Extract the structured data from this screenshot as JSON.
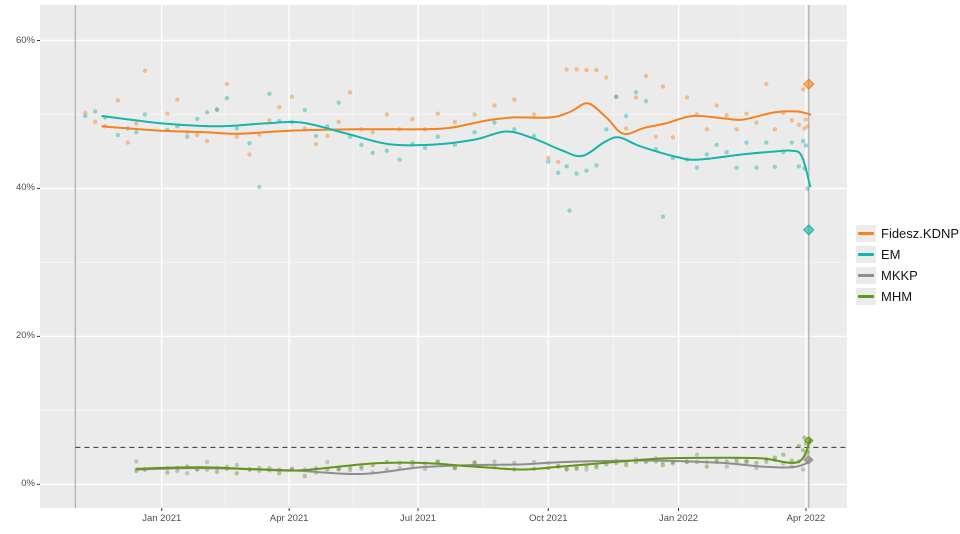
{
  "page": {
    "background": "#ffffff",
    "panel_bg": "#ebebeb",
    "grid_color": "#ffffff"
  },
  "legend": {
    "items": [
      {
        "label": "Fidesz.KDNP",
        "color": "#f5821f"
      },
      {
        "label": "EM",
        "color": "#16b5a8"
      },
      {
        "label": "MKKP",
        "color": "#8e8e8e"
      },
      {
        "label": "MHM",
        "color": "#61961b"
      }
    ]
  },
  "chart_data": {
    "type": "scatter",
    "title": "",
    "xlabel": "",
    "ylabel": "",
    "grid": true,
    "legend_position": "right",
    "x_axis": {
      "domain": [
        "2020-10-07",
        "2022-04-30"
      ],
      "ticks": [
        {
          "label": "Jan 2021",
          "date": "2021-01-01"
        },
        {
          "label": "Apr 2021",
          "date": "2021-04-01"
        },
        {
          "label": "Jul 2021",
          "date": "2021-07-01"
        },
        {
          "label": "Oct 2021",
          "date": "2021-10-01"
        },
        {
          "label": "Jan 2022",
          "date": "2022-01-01"
        },
        {
          "label": "Apr 2022",
          "date": "2022-04-01"
        }
      ]
    },
    "y_axis": {
      "domain": [
        -3.2,
        64.8
      ],
      "ticks": [
        {
          "label": "60%",
          "value": 60
        },
        {
          "label": "40%",
          "value": 40
        },
        {
          "label": "20%",
          "value": 20
        },
        {
          "label": "0%",
          "value": 0
        }
      ],
      "minor_ticks": [
        10,
        30,
        50
      ]
    },
    "threshold_line": {
      "value": 5,
      "style": "dashed",
      "color": "#333333"
    },
    "vertical_markers": [
      {
        "date": "2020-11-01",
        "color": "#b3b3b3"
      },
      {
        "date": "2022-04-03",
        "color": "#b3b3b3"
      }
    ],
    "series": [
      {
        "name": "Fidesz.KDNP",
        "color": "#f5821f",
        "trend": [
          [
            "2020-11-20",
            48.4
          ],
          [
            "2021-01-01",
            47.8
          ],
          [
            "2021-02-01",
            47.6
          ],
          [
            "2021-02-25",
            47.4
          ],
          [
            "2021-04-01",
            47.8
          ],
          [
            "2021-05-20",
            48.0
          ],
          [
            "2021-07-03",
            48.0
          ],
          [
            "2021-07-24",
            48.2
          ],
          [
            "2021-08-19",
            49.2
          ],
          [
            "2021-09-07",
            49.6
          ],
          [
            "2021-10-03",
            49.6
          ],
          [
            "2021-10-17",
            50.4
          ],
          [
            "2021-10-29",
            51.5
          ],
          [
            "2021-11-11",
            49.6
          ],
          [
            "2021-11-23",
            47.4
          ],
          [
            "2021-12-08",
            48.2
          ],
          [
            "2021-12-23",
            48.8
          ],
          [
            "2022-01-11",
            49.8
          ],
          [
            "2022-02-01",
            49.5
          ],
          [
            "2022-02-15",
            49.3
          ],
          [
            "2022-03-10",
            50.3
          ],
          [
            "2022-03-26",
            50.4
          ],
          [
            "2022-04-04",
            50.0
          ]
        ]
      },
      {
        "name": "EM",
        "color": "#16b5a8",
        "trend": [
          [
            "2020-11-20",
            49.8
          ],
          [
            "2021-01-01",
            48.8
          ],
          [
            "2021-02-10",
            48.4
          ],
          [
            "2021-03-15",
            48.8
          ],
          [
            "2021-04-10",
            48.9
          ],
          [
            "2021-05-10",
            47.5
          ],
          [
            "2021-06-10",
            46.0
          ],
          [
            "2021-07-10",
            45.9
          ],
          [
            "2021-08-10",
            46.6
          ],
          [
            "2021-09-01",
            47.7
          ],
          [
            "2021-09-20",
            46.8
          ],
          [
            "2021-10-10",
            45.2
          ],
          [
            "2021-10-25",
            44.4
          ],
          [
            "2021-11-10",
            46.3
          ],
          [
            "2021-11-20",
            46.9
          ],
          [
            "2021-12-05",
            45.7
          ],
          [
            "2022-01-01",
            44.2
          ],
          [
            "2022-01-15",
            43.9
          ],
          [
            "2022-02-15",
            44.6
          ],
          [
            "2022-03-10",
            45.0
          ],
          [
            "2022-03-22",
            45.1
          ],
          [
            "2022-03-29",
            44.4
          ],
          [
            "2022-04-04",
            40.3
          ]
        ]
      },
      {
        "name": "MKKP",
        "color": "#8e8e8e",
        "trend": [
          [
            "2020-12-14",
            2.0
          ],
          [
            "2021-01-28",
            2.2
          ],
          [
            "2021-04-01",
            1.9
          ],
          [
            "2021-05-21",
            1.4
          ],
          [
            "2021-07-03",
            2.3
          ],
          [
            "2021-08-07",
            2.6
          ],
          [
            "2021-09-12",
            2.7
          ],
          [
            "2021-10-10",
            3.0
          ],
          [
            "2021-11-22",
            3.2
          ],
          [
            "2021-12-22",
            3.2
          ],
          [
            "2022-02-01",
            2.9
          ],
          [
            "2022-03-01",
            2.4
          ],
          [
            "2022-03-22",
            2.3
          ],
          [
            "2022-04-01",
            2.8
          ],
          [
            "2022-04-04",
            3.4
          ]
        ]
      },
      {
        "name": "MHM",
        "color": "#61961b",
        "trend": [
          [
            "2020-12-14",
            2.1
          ],
          [
            "2021-01-28",
            2.3
          ],
          [
            "2021-03-11",
            2.0
          ],
          [
            "2021-04-10",
            1.9
          ],
          [
            "2021-05-28",
            2.8
          ],
          [
            "2021-07-03",
            2.9
          ],
          [
            "2021-08-10",
            2.4
          ],
          [
            "2021-09-12",
            2.0
          ],
          [
            "2021-10-10",
            2.4
          ],
          [
            "2021-11-22",
            3.1
          ],
          [
            "2021-12-22",
            3.5
          ],
          [
            "2022-02-01",
            3.6
          ],
          [
            "2022-03-01",
            3.5
          ],
          [
            "2022-03-22",
            2.9
          ],
          [
            "2022-03-30",
            3.6
          ],
          [
            "2022-04-04",
            6.0
          ]
        ]
      }
    ],
    "polls": {
      "columns": [
        "date",
        "Fidesz.KDNP",
        "EM",
        "MKKP",
        "MHM"
      ],
      "rows": [
        [
          "2020-11-08",
          50.2,
          49.8,
          null,
          null
        ],
        [
          "2020-11-15",
          49.0,
          50.4,
          null,
          null
        ],
        [
          "2020-11-22",
          48.4,
          49.6,
          null,
          null
        ],
        [
          "2020-12-01",
          51.9,
          47.2,
          null,
          null
        ],
        [
          "2020-12-08",
          46.2,
          48.1,
          null,
          null
        ],
        [
          "2020-12-14",
          48.8,
          47.6,
          3.1,
          1.8
        ],
        [
          "2020-12-20",
          55.9,
          50.0,
          2.0,
          2.0
        ],
        [
          "2021-01-05",
          50.1,
          47.9,
          2.2,
          1.6
        ],
        [
          "2021-01-12",
          52.0,
          48.4,
          1.8,
          2.2
        ],
        [
          "2021-01-19",
          47.6,
          47.0,
          1.5,
          2.4
        ],
        [
          "2021-01-26",
          47.2,
          49.4,
          2.1,
          2.0
        ],
        [
          "2021-02-02",
          46.4,
          50.3,
          3.0,
          2.0
        ],
        [
          "2021-02-09",
          50.6,
          50.7,
          2.2,
          1.7
        ],
        [
          "2021-02-16",
          54.1,
          52.2,
          2.4,
          2.1
        ],
        [
          "2021-02-23",
          47.0,
          48.1,
          2.6,
          1.5
        ],
        [
          "2021-03-04",
          44.6,
          46.1,
          2.0,
          2.0
        ],
        [
          "2021-03-11",
          47.3,
          40.2,
          1.8,
          2.2
        ],
        [
          "2021-03-18",
          49.2,
          52.8,
          2.2,
          1.9
        ],
        [
          "2021-03-25",
          51.0,
          49.1,
          2.0,
          1.5
        ],
        [
          "2021-04-03",
          52.4,
          49.0,
          2.1,
          2.0
        ],
        [
          "2021-04-12",
          48.1,
          50.6,
          2.0,
          1.1
        ],
        [
          "2021-04-20",
          46.0,
          47.1,
          2.2,
          1.6
        ],
        [
          "2021-04-28",
          47.1,
          48.4,
          3.0,
          2.0
        ],
        [
          "2021-05-06",
          49.0,
          51.6,
          2.0,
          2.1
        ],
        [
          "2021-05-14",
          53.0,
          47.0,
          1.9,
          2.3
        ],
        [
          "2021-05-22",
          48.0,
          45.9,
          2.1,
          2.4
        ],
        [
          "2021-05-30",
          47.6,
          44.8,
          1.6,
          2.6
        ],
        [
          "2021-06-09",
          50.0,
          45.1,
          2.0,
          3.0
        ],
        [
          "2021-06-18",
          48.0,
          43.9,
          2.2,
          2.9
        ],
        [
          "2021-06-27",
          49.4,
          46.0,
          2.6,
          3.0
        ],
        [
          "2021-07-06",
          48.0,
          45.5,
          2.1,
          2.8
        ],
        [
          "2021-07-15",
          50.1,
          47.0,
          3.0,
          3.1
        ],
        [
          "2021-07-27",
          49.0,
          45.9,
          2.2,
          2.2
        ],
        [
          "2021-08-10",
          50.0,
          47.6,
          3.0,
          2.9
        ],
        [
          "2021-08-24",
          51.2,
          48.9,
          3.1,
          2.4
        ],
        [
          "2021-09-07",
          52.0,
          48.0,
          2.9,
          2.0
        ],
        [
          "2021-09-21",
          50.0,
          47.1,
          3.0,
          2.1
        ],
        [
          "2021-10-01",
          44.1,
          43.6,
          2.9,
          2.2
        ],
        [
          "2021-10-08",
          43.6,
          42.1,
          2.5,
          2.4
        ],
        [
          "2021-10-14",
          56.1,
          43.0,
          2.1,
          2.0
        ],
        [
          "2021-10-16",
          null,
          37.0,
          null,
          null
        ],
        [
          "2021-10-21",
          56.1,
          42.0,
          2.3,
          2.1
        ],
        [
          "2021-10-28",
          56.0,
          42.4,
          2.0,
          2.5
        ],
        [
          "2021-11-04",
          56.0,
          43.1,
          2.6,
          2.3
        ],
        [
          "2021-11-11",
          55.0,
          48.0,
          3.0,
          2.7
        ],
        [
          "2021-11-18",
          52.4,
          52.4,
          3.2,
          2.9
        ],
        [
          "2021-11-25",
          48.1,
          49.8,
          3.0,
          2.6
        ],
        [
          "2021-12-02",
          52.3,
          53.0,
          3.4,
          3.0
        ],
        [
          "2021-12-09",
          55.2,
          51.8,
          3.0,
          3.2
        ],
        [
          "2021-12-16",
          47.0,
          45.3,
          3.5,
          3.1
        ],
        [
          "2021-12-21",
          53.8,
          36.2,
          3.0,
          2.6
        ],
        [
          "2021-12-28",
          46.9,
          44.1,
          2.8,
          3.0
        ],
        [
          "2022-01-07",
          52.3,
          43.9,
          3.1,
          3.0
        ],
        [
          "2022-01-14",
          50.0,
          42.8,
          4.0,
          3.0
        ],
        [
          "2022-01-21",
          48.0,
          44.6,
          3.0,
          2.4
        ],
        [
          "2022-01-28",
          51.2,
          45.9,
          3.3,
          3.0
        ],
        [
          "2022-02-04",
          49.9,
          44.9,
          2.4,
          3.1
        ],
        [
          "2022-02-11",
          48.0,
          42.8,
          2.9,
          3.3
        ],
        [
          "2022-02-18",
          50.1,
          46.2,
          3.2,
          3.0
        ],
        [
          "2022-02-25",
          48.9,
          42.8,
          2.2,
          2.9
        ],
        [
          "2022-03-04",
          54.1,
          46.2,
          3.0,
          3.4
        ],
        [
          "2022-03-10",
          48.0,
          42.9,
          3.3,
          3.6
        ],
        [
          "2022-03-16",
          50.2,
          44.9,
          2.8,
          4.0
        ],
        [
          "2022-03-22",
          49.2,
          46.2,
          2.4,
          3.2
        ],
        [
          "2022-03-27",
          48.6,
          43.0,
          3.1,
          5.2
        ],
        [
          "2022-03-30",
          53.4,
          46.4,
          2.0,
          4.6
        ],
        [
          "2022-03-31",
          48.1,
          42.7,
          3.4,
          6.3
        ],
        [
          "2022-04-01",
          49.3,
          45.8,
          3.9,
          5.5
        ],
        [
          "2022-04-02",
          48.4,
          40.0,
          3.0,
          4.4
        ]
      ]
    },
    "election_results": {
      "date": "2022-04-03",
      "values": {
        "Fidesz.KDNP": 54.1,
        "EM": 34.4,
        "MKKP": 3.3,
        "MHM": 5.9
      }
    }
  }
}
